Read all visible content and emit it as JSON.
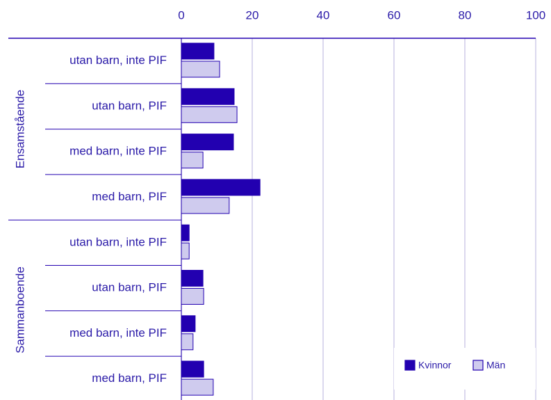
{
  "chart_data": {
    "type": "bar",
    "orientation": "horizontal",
    "groups": [
      {
        "name": "Ensamstående",
        "categories": [
          "utan barn, inte PIF",
          "utan barn, PIF",
          "med barn, inte PIF",
          "med barn, PIF"
        ]
      },
      {
        "name": "Sammanboende",
        "categories": [
          "utan barn, inte PIF",
          "utan barn, PIF",
          "med barn, inte PIF",
          "med barn, PIF"
        ]
      }
    ],
    "series": [
      {
        "name": "Kvinnor",
        "color": "#2200b0",
        "values": [
          9.2,
          14.9,
          14.7,
          22.2,
          2.2,
          6.1,
          3.9,
          6.3
        ]
      },
      {
        "name": "Män",
        "color": "#cfcbee",
        "values": [
          10.8,
          15.7,
          6.1,
          13.5,
          2.2,
          6.3,
          3.3,
          9.0
        ]
      }
    ],
    "xlim": [
      0,
      100
    ],
    "xticks": [
      0,
      20,
      40,
      60,
      80,
      100
    ],
    "grid": true,
    "legend": "lower right"
  }
}
